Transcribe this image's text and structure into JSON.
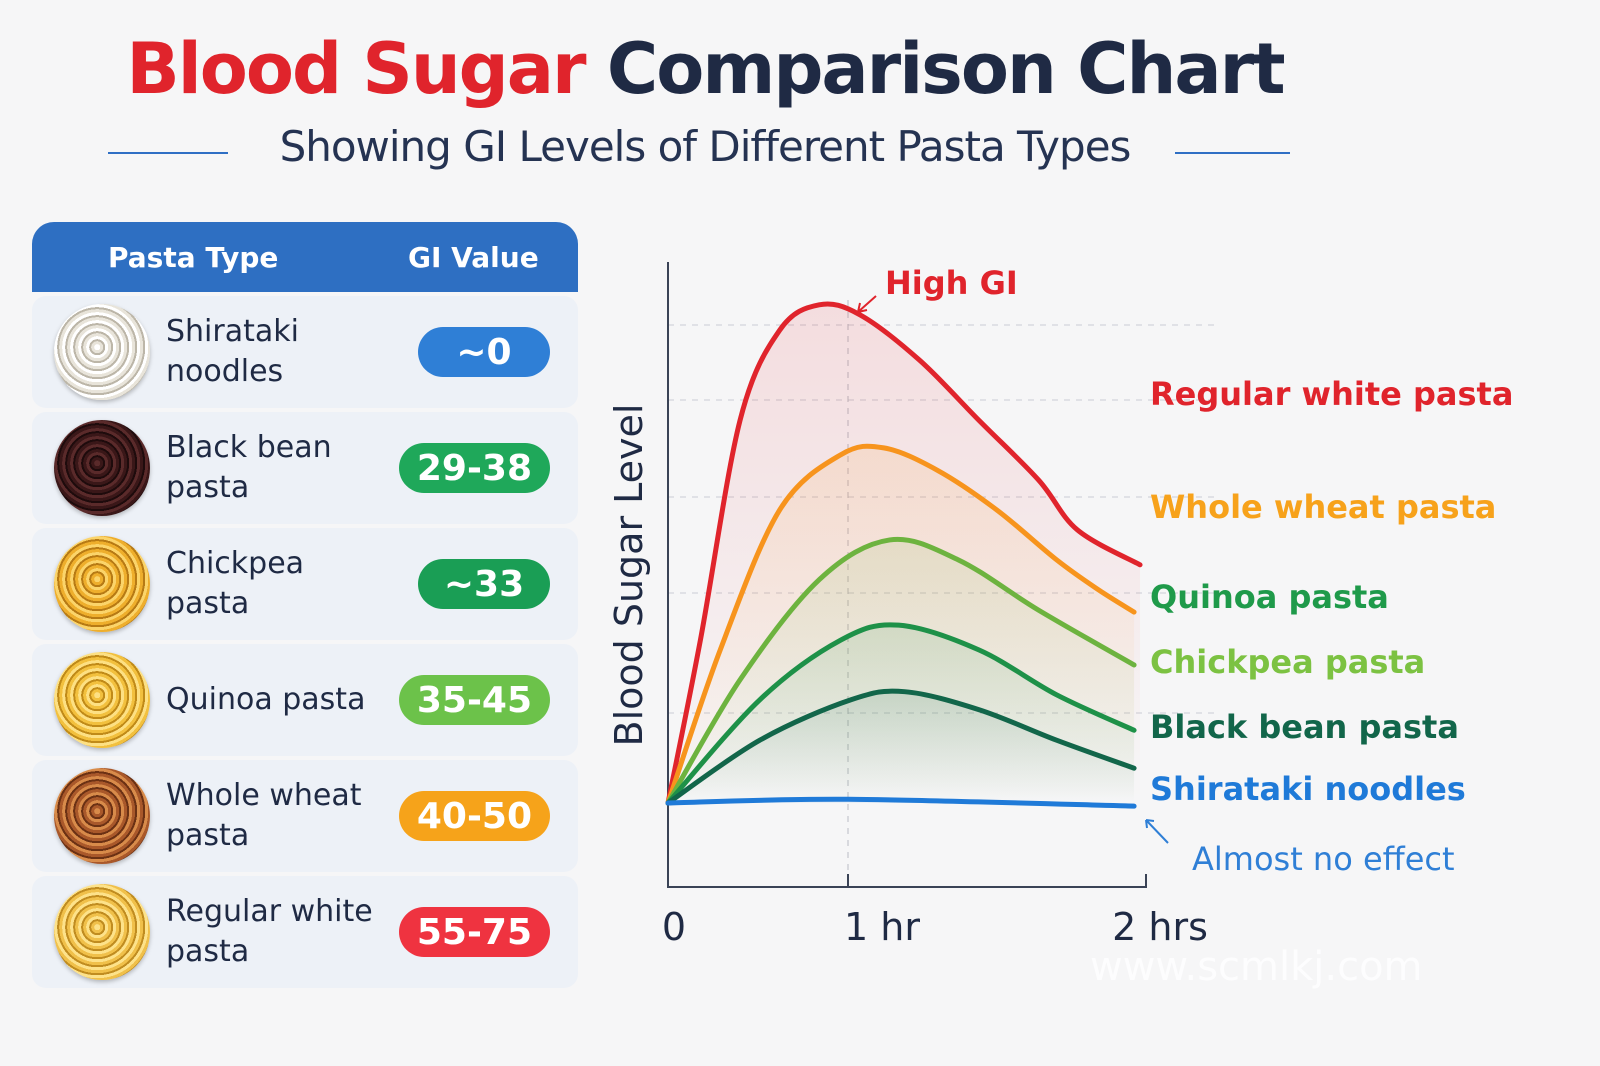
{
  "title": {
    "part1": "Blood Sugar",
    "part2": "Comparison Chart"
  },
  "subtitle": "Showing GI Levels of Different Pasta Types",
  "table": {
    "headers": [
      "Pasta Type",
      "GI Value"
    ],
    "rows": [
      {
        "name": "Shirataki noodles",
        "gi": "~0",
        "color": "#2f7fd6",
        "food": [
          "#ffffff",
          "#e8e4da",
          "#bcb6a8"
        ]
      },
      {
        "name": "Black bean pasta",
        "gi": "29-38",
        "color": "#1fa85a",
        "food": [
          "#5a2a2a",
          "#3a1718",
          "#1e0b0c"
        ]
      },
      {
        "name": "Chickpea pasta",
        "gi": "~33",
        "color": "#1a9e55",
        "food": [
          "#fbd46a",
          "#eeae2c",
          "#b77a14"
        ]
      },
      {
        "name": "Quinoa pasta",
        "gi": "35-45",
        "color": "#6cc24a",
        "food": [
          "#fde083",
          "#f2c03e",
          "#c08a18"
        ]
      },
      {
        "name": "Whole wheat pasta",
        "gi": "40-50",
        "color": "#f6a31a",
        "food": [
          "#d88b4a",
          "#a9582a",
          "#6b3114"
        ]
      },
      {
        "name": "Regular white pasta",
        "gi": "55-75",
        "color": "#ef3340",
        "food": [
          "#fde28a",
          "#f0c04a",
          "#c08c20"
        ]
      }
    ]
  },
  "chart_data": {
    "type": "line",
    "ylabel": "Blood Sugar Level",
    "xlabel": "",
    "x_ticks": [
      {
        "value": 0,
        "label": "0"
      },
      {
        "value": 1,
        "label": "1 hr"
      },
      {
        "value": 2,
        "label": "2 hrs"
      }
    ],
    "xlim": [
      0,
      2
    ],
    "ylim": [
      0,
      100
    ],
    "grid": "dashed horizontal, dashed vertical at 1 hr",
    "annotations": [
      {
        "text": "High GI",
        "color": "#e0242c"
      },
      {
        "text": "Almost no effect",
        "color": "#2f7fd6"
      }
    ],
    "series": [
      {
        "name": "Regular white pasta",
        "color": "#e0242c",
        "x": [
          0,
          0.18,
          0.4,
          0.62,
          0.84,
          1.04,
          1.24,
          1.44,
          1.64,
          1.77,
          1.98
        ],
        "y": [
          13.5,
          39.7,
          75,
          89.5,
          93.6,
          92,
          84.7,
          75,
          65.4,
          57.4,
          51.8
        ]
      },
      {
        "name": "Whole wheat pasta",
        "color": "#f7941d",
        "x": [
          0,
          0.29,
          0.62,
          0.96,
          1.12,
          1.3,
          1.5,
          1.7,
          1.84,
          1.96
        ],
        "y": [
          13.5,
          38.1,
          60.6,
          69.5,
          70.6,
          67,
          60.6,
          52.6,
          47.8,
          44.2
        ]
      },
      {
        "name": "Quinoa pasta",
        "color": "#6db33f",
        "x": [
          0,
          0.4,
          0.84,
          1.14,
          1.37,
          1.64,
          1.96
        ],
        "y": [
          13.5,
          33.3,
          49.4,
          55.8,
          52.6,
          44.5,
          35.7
        ]
      },
      {
        "name": "Chickpea pasta",
        "color": "#1e9148",
        "labelColor": "#7cc242",
        "x": [
          0,
          0.51,
          0.96,
          1.17,
          1.44,
          1.7,
          1.96
        ],
        "y": [
          13.5,
          30.1,
          39.7,
          42.1,
          38.1,
          30.9,
          25.2
        ]
      },
      {
        "name": "Black bean pasta",
        "color": "#12664a",
        "x": [
          0,
          0.51,
          1.01,
          1.19,
          1.44,
          1.7,
          1.96
        ],
        "y": [
          13.5,
          23.6,
          30.1,
          31.4,
          28.5,
          23.6,
          19.1
        ]
      },
      {
        "name": "Shirataki noodles",
        "color": "#1f7ad8",
        "x": [
          0,
          1,
          1.96
        ],
        "y": [
          13.5,
          14.1,
          13
        ]
      }
    ]
  },
  "legend_labels": [
    {
      "text": "Regular white pasta",
      "color": "#e0242c"
    },
    {
      "text": "Whole wheat pasta",
      "color": "#f7a21b"
    },
    {
      "text": "Quinoa pasta",
      "color": "#1f9a4a"
    },
    {
      "text": "Chickpea pasta",
      "color": "#7cc242"
    },
    {
      "text": "Black bean pasta",
      "color": "#12664a"
    },
    {
      "text": "Shirataki noodles",
      "color": "#1f7ad8"
    }
  ],
  "watermark": "www.scmlkj.com"
}
